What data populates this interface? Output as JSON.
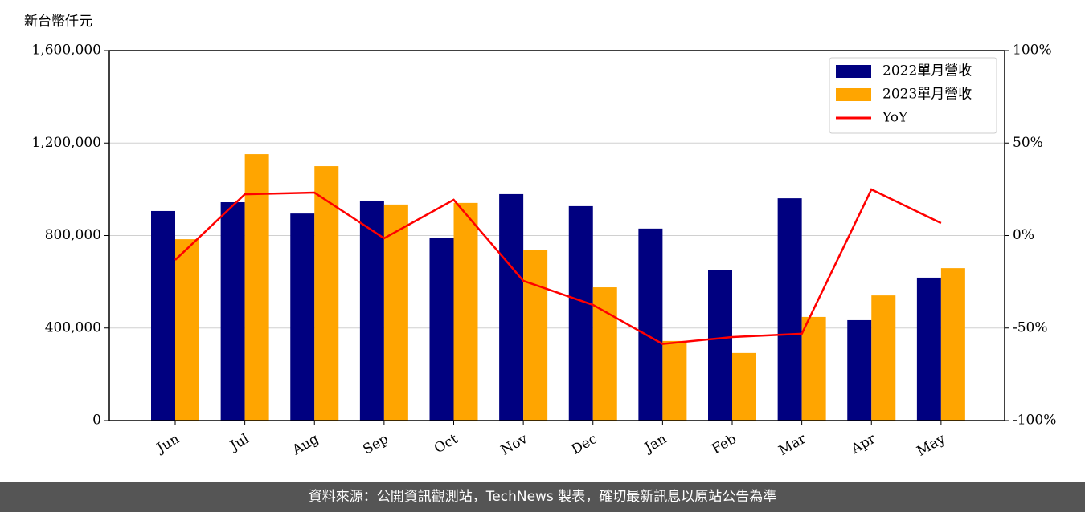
{
  "chart_data": {
    "type": "bar_line",
    "y_label": "新台幣仟元",
    "categories": [
      "Jun",
      "Jul",
      "Aug",
      "Sep",
      "Oct",
      "Nov",
      "Dec",
      "Jan",
      "Feb",
      "Mar",
      "Apr",
      "May"
    ],
    "series": [
      {
        "name": "2022單月營收",
        "type": "bar",
        "color": "#000080",
        "values": [
          906000,
          944000,
          895000,
          951000,
          788000,
          979000,
          927000,
          830000,
          652000,
          961000,
          434000,
          618000
        ]
      },
      {
        "name": "2023單月營收",
        "type": "bar",
        "color": "#ffa500",
        "values": [
          784000,
          1152000,
          1100000,
          934000,
          941000,
          739000,
          576000,
          344000,
          292000,
          448000,
          541000,
          659000
        ]
      },
      {
        "name": "YoY",
        "type": "line",
        "axis": "y2",
        "color": "#ff0000",
        "values": [
          -13.2,
          22.3,
          23.2,
          -1.5,
          19.3,
          -24.5,
          -37.5,
          -58.6,
          -54.9,
          -53.1,
          24.9,
          6.7
        ]
      }
    ],
    "ylim": [
      0,
      1600000
    ],
    "yticks": [
      0,
      {
        "value": 400000,
        "label": "400,000"
      },
      {
        "value": 800000,
        "label": "800,000"
      },
      {
        "value": 1200000,
        "label": "1,200,000"
      },
      {
        "value": 1600000,
        "label": "1,600,000"
      }
    ],
    "y2lim": [
      -100,
      100
    ],
    "y2ticks": [
      {
        "value": -100,
        "label": "-100%"
      },
      {
        "value": -50,
        "label": "-50%"
      },
      {
        "value": 0,
        "label": "0%"
      },
      {
        "value": 50,
        "label": "50%"
      },
      {
        "value": 100,
        "label": "100%"
      }
    ],
    "grid": true,
    "legend": "upper right"
  },
  "footer": "資料來源：公開資訊觀測站，TechNews 製表，確切最新訊息以原站公告為準"
}
